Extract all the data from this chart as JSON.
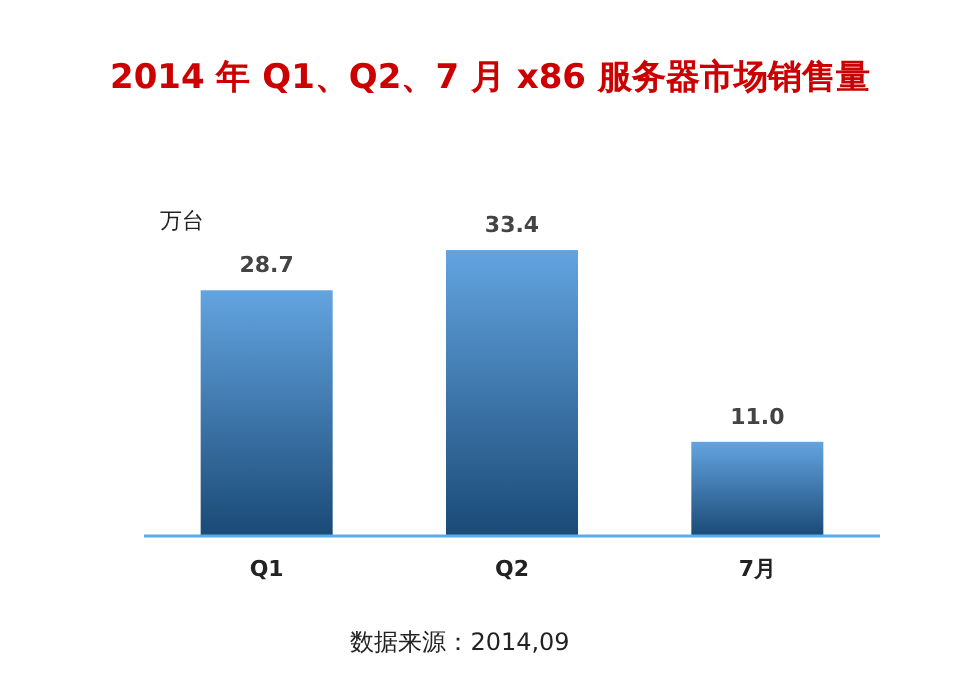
{
  "chart_data": {
    "type": "bar",
    "title": "2014 年 Q1、Q2、7 月 x86 服务器市场销售量",
    "ylabel": "万台",
    "categories": [
      "Q1",
      "Q2",
      "7月"
    ],
    "values": [
      28.7,
      33.4,
      11.0
    ],
    "value_labels": [
      "28.7",
      "33.4",
      "11.0"
    ],
    "color": "#2f86d6",
    "annotations": [
      "数据来源：2014,09"
    ]
  }
}
